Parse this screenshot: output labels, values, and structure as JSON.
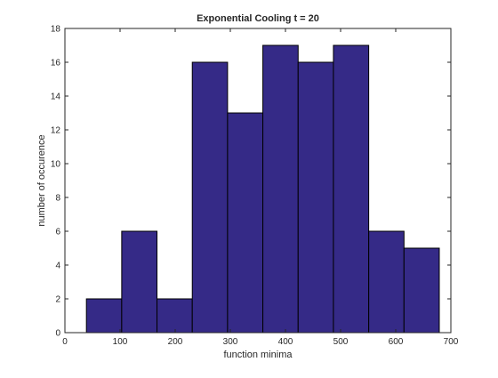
{
  "chart_data": {
    "type": "bar",
    "title": "Exponential Cooling t = 20",
    "xlabel": "function minima",
    "ylabel": "number of occurence",
    "xlim": [
      0,
      700
    ],
    "ylim": [
      0,
      18
    ],
    "xticks": [
      0,
      100,
      200,
      300,
      400,
      500,
      600,
      700
    ],
    "yticks": [
      0,
      2,
      4,
      6,
      8,
      10,
      12,
      14,
      16,
      18
    ],
    "bins": [
      {
        "start": 39,
        "end": 103,
        "count": 2
      },
      {
        "start": 103,
        "end": 167,
        "count": 6
      },
      {
        "start": 167,
        "end": 231,
        "count": 2
      },
      {
        "start": 231,
        "end": 295,
        "count": 16
      },
      {
        "start": 295,
        "end": 359,
        "count": 13
      },
      {
        "start": 359,
        "end": 423,
        "count": 17
      },
      {
        "start": 423,
        "end": 487,
        "count": 16
      },
      {
        "start": 487,
        "end": 551,
        "count": 17
      },
      {
        "start": 551,
        "end": 615,
        "count": 6
      },
      {
        "start": 615,
        "end": 679,
        "count": 5
      }
    ],
    "bar_color": "#352a87",
    "edge_color": "#000000",
    "grid": false
  }
}
